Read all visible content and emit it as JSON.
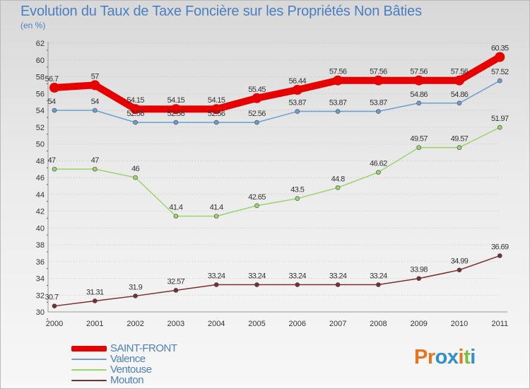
{
  "header": {
    "title": "Evolution du Taux de Taxe Foncière sur les Propriétés Non Bâties",
    "subtitle": "(en %)"
  },
  "logo": {
    "text": "Proxiti",
    "colors": [
      "#e8731d",
      "#e8731d",
      "#2f8fcf",
      "#2f8fcf",
      "#e8731d",
      "#7cbf3a",
      "#2f8fcf"
    ]
  },
  "chart_data": {
    "type": "line",
    "categories": [
      "2000",
      "2001",
      "2002",
      "2003",
      "2004",
      "2005",
      "2006",
      "2007",
      "2008",
      "2009",
      "2010",
      "2011"
    ],
    "ylim": [
      30,
      62
    ],
    "yticks": [
      30,
      32,
      34,
      36,
      38,
      40,
      42,
      44,
      46,
      48,
      50,
      52,
      54,
      56,
      58,
      60,
      62
    ],
    "grid": "horizontal dotted",
    "legend_placement": "bottom-left",
    "series": [
      {
        "name": "SAINT-FRONT",
        "color": "#e60000",
        "values": [
          56.7,
          57,
          54.15,
          54.15,
          54.15,
          55.45,
          56.44,
          57.56,
          57.56,
          57.56,
          57.56,
          60.35
        ],
        "labels": [
          "56.7",
          "57",
          "54.15",
          "54.15",
          "54.15",
          "55.45",
          "56.44",
          "57.56",
          "57.56",
          "57.56",
          "57.56",
          "60.35"
        ]
      },
      {
        "name": "Valence",
        "color": "#6a9fd0",
        "values": [
          54,
          54,
          52.56,
          52.56,
          52.56,
          52.56,
          53.87,
          53.87,
          53.87,
          54.86,
          54.86,
          57.52
        ],
        "labels": [
          "54",
          "54",
          "52.56",
          "52.56",
          "52.56",
          "52.56",
          "53.87",
          "53.87",
          "53.87",
          "54.86",
          "54.86",
          "57.52"
        ]
      },
      {
        "name": "Ventouse",
        "color": "#9bd46c",
        "values": [
          47,
          47,
          46,
          41.4,
          41.4,
          42.65,
          43.5,
          44.8,
          46.62,
          49.57,
          49.57,
          51.97
        ],
        "labels": [
          "47",
          "47",
          "46",
          "41.4",
          "41.4",
          "42.65",
          "43.5",
          "44.8",
          "46.62",
          "49.57",
          "49.57",
          "51.97"
        ]
      },
      {
        "name": "Mouton",
        "color": "#7a2e2e",
        "values": [
          30.7,
          31.31,
          31.9,
          32.57,
          33.24,
          33.24,
          33.24,
          33.24,
          33.24,
          33.98,
          34.99,
          36.69
        ],
        "labels": [
          "30.7",
          "31.31",
          "31.9",
          "32.57",
          "33.24",
          "33.24",
          "33.24",
          "33.24",
          "33.24",
          "33.98",
          "34.99",
          "36.69"
        ]
      }
    ]
  }
}
